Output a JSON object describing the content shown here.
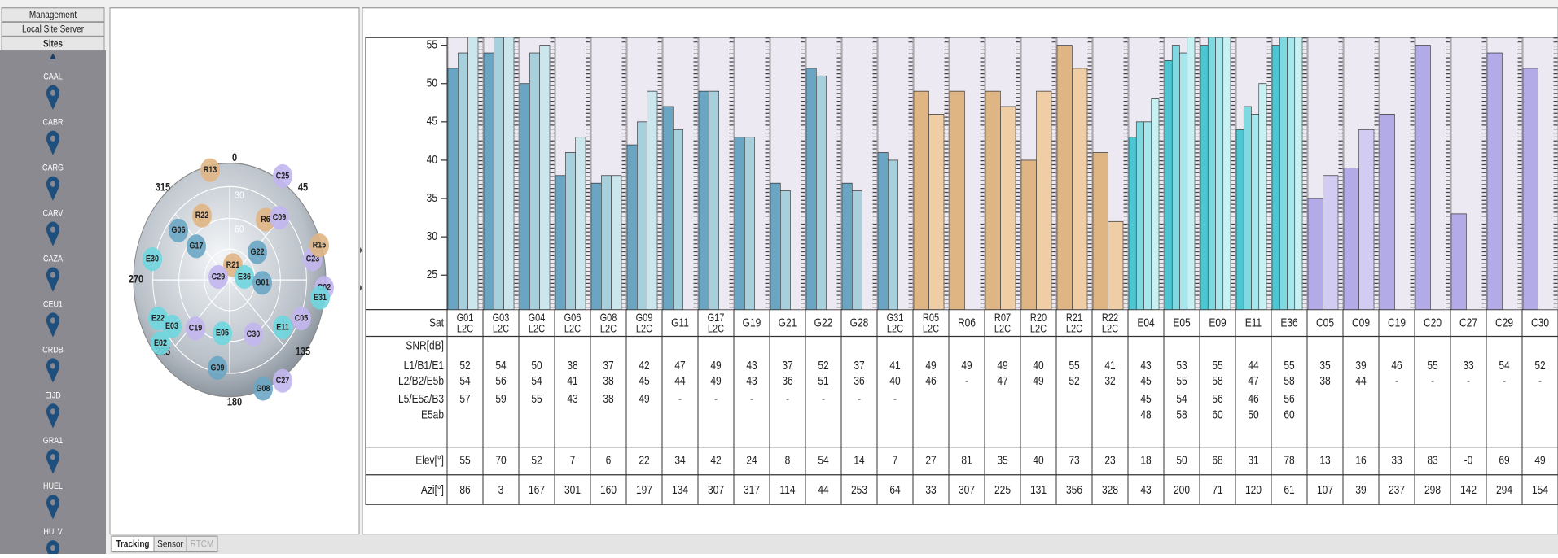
{
  "sidebar": {
    "buttons": [
      "Management",
      "Local Site Server",
      "Sites"
    ],
    "sites": [
      "CAAL",
      "CABR",
      "CARG",
      "CARV",
      "CAZA",
      "CEU1",
      "CRDB",
      "EIJD",
      "GRA1",
      "HUEL",
      "HULV"
    ]
  },
  "skyplot": {
    "directions": [
      "0",
      "45",
      "135",
      "180",
      "225",
      "270",
      "315"
    ],
    "rings": [
      "30",
      "60"
    ],
    "satellites": [
      "R13",
      "C25",
      "R22",
      "R6",
      "C09",
      "G06",
      "G17",
      "G22",
      "E30",
      "R21",
      "C29",
      "E36",
      "G01",
      "E22",
      "E03",
      "C19",
      "E05",
      "C30",
      "E11",
      "C05",
      "E02",
      "G09",
      "G08",
      "C27",
      "C23",
      "R15",
      "C02",
      "E31"
    ]
  },
  "table": {
    "ylim": [
      20.5,
      56
    ],
    "yticks": [
      25,
      30,
      35,
      40,
      45,
      50,
      55
    ],
    "row_labels": {
      "sat": "Sat",
      "snr": [
        "SNR[dB]",
        "L1/B1/E1",
        "L2/B2/E5b",
        "L5/E5a/B3",
        "E5ab"
      ],
      "elev": "Elev[°]",
      "azi": "Azi[°]"
    },
    "columns": [
      {
        "sat": "G01",
        "sig": "L2C",
        "snr": [
          52,
          54,
          57
        ],
        "elev": 55,
        "azi": 86
      },
      {
        "sat": "G03",
        "sig": "L2C",
        "snr": [
          54,
          56,
          59
        ],
        "elev": 70,
        "azi": 3
      },
      {
        "sat": "G04",
        "sig": "L2C",
        "snr": [
          50,
          54,
          55
        ],
        "elev": 52,
        "azi": 167
      },
      {
        "sat": "G06",
        "sig": "L2C",
        "snr": [
          38,
          41,
          43
        ],
        "elev": 7,
        "azi": 301
      },
      {
        "sat": "G08",
        "sig": "L2C",
        "snr": [
          37,
          38,
          38
        ],
        "elev": 6,
        "azi": 160
      },
      {
        "sat": "G09",
        "sig": "L2C",
        "snr": [
          42,
          45,
          49
        ],
        "elev": 22,
        "azi": 197
      },
      {
        "sat": "G11",
        "snr": [
          47,
          44,
          "-"
        ],
        "elev": 34,
        "azi": 134
      },
      {
        "sat": "G17",
        "sig": "L2C",
        "snr": [
          49,
          49,
          "-"
        ],
        "elev": 42,
        "azi": 307
      },
      {
        "sat": "G19",
        "snr": [
          43,
          43,
          "-"
        ],
        "elev": 24,
        "azi": 317
      },
      {
        "sat": "G21",
        "snr": [
          37,
          36,
          "-"
        ],
        "elev": 8,
        "azi": 114
      },
      {
        "sat": "G22",
        "snr": [
          52,
          51,
          "-"
        ],
        "elev": 54,
        "azi": 44
      },
      {
        "sat": "G28",
        "snr": [
          37,
          36,
          "-"
        ],
        "elev": 14,
        "azi": 253
      },
      {
        "sat": "G31",
        "sig": "L2C",
        "snr": [
          41,
          40,
          "-"
        ],
        "elev": 7,
        "azi": 64
      },
      {
        "sat": "R05",
        "sig": "L2C",
        "snr": [
          49,
          46
        ],
        "elev": 27,
        "azi": 33
      },
      {
        "sat": "R06",
        "snr": [
          49,
          "-"
        ],
        "elev": 81,
        "azi": 307
      },
      {
        "sat": "R07",
        "sig": "L2C",
        "snr": [
          49,
          47
        ],
        "elev": 35,
        "azi": 225
      },
      {
        "sat": "R20",
        "sig": "L2C",
        "snr": [
          40,
          49
        ],
        "elev": 40,
        "azi": 131
      },
      {
        "sat": "R21",
        "sig": "L2C",
        "snr": [
          55,
          52
        ],
        "elev": 73,
        "azi": 356
      },
      {
        "sat": "R22",
        "sig": "L2C",
        "snr": [
          41,
          32
        ],
        "elev": 23,
        "azi": 328
      },
      {
        "sat": "E04",
        "snr": [
          43,
          45,
          45,
          48
        ],
        "elev": 18,
        "azi": 43
      },
      {
        "sat": "E05",
        "snr": [
          53,
          55,
          54,
          58
        ],
        "elev": 50,
        "azi": 200
      },
      {
        "sat": "E09",
        "snr": [
          55,
          58,
          56,
          60
        ],
        "elev": 68,
        "azi": 71
      },
      {
        "sat": "E11",
        "snr": [
          44,
          47,
          46,
          50
        ],
        "elev": 31,
        "azi": 120
      },
      {
        "sat": "E36",
        "snr": [
          55,
          58,
          56,
          60
        ],
        "elev": 78,
        "azi": 61
      },
      {
        "sat": "C05",
        "snr": [
          35,
          38
        ],
        "elev": 13,
        "azi": 107
      },
      {
        "sat": "C09",
        "snr": [
          39,
          44
        ],
        "elev": 16,
        "azi": 39
      },
      {
        "sat": "C19",
        "snr": [
          46,
          "-"
        ],
        "elev": 33,
        "azi": 237
      },
      {
        "sat": "C20",
        "snr": [
          55,
          "-"
        ],
        "elev": 83,
        "azi": 298
      },
      {
        "sat": "C27",
        "snr": [
          33,
          "-"
        ],
        "elev": "-0",
        "azi": 142
      },
      {
        "sat": "C29",
        "snr": [
          54,
          "-"
        ],
        "elev": 69,
        "azi": 294
      },
      {
        "sat": "C30",
        "snr": [
          52,
          "-"
        ],
        "elev": 49,
        "azi": 154
      }
    ]
  },
  "tabs": [
    "Tracking",
    "Sensor",
    "RTCM"
  ]
}
